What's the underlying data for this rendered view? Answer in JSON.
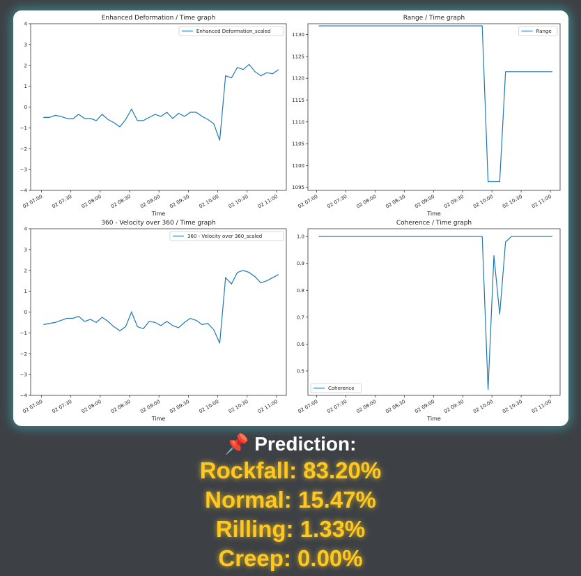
{
  "chart_data": [
    {
      "type": "line",
      "title": "Enhanced Deformation / Time graph",
      "xlabel": "Time",
      "x": [
        "02 07:02",
        "02 07:08",
        "02 07:14",
        "02 07:20",
        "02 07:26",
        "02 07:32",
        "02 07:38",
        "02 07:44",
        "02 07:50",
        "02 07:56",
        "02 08:02",
        "02 08:08",
        "02 08:14",
        "02 08:20",
        "02 08:26",
        "02 08:32",
        "02 08:38",
        "02 08:44",
        "02 08:50",
        "02 08:56",
        "02 09:02",
        "02 09:08",
        "02 09:14",
        "02 09:20",
        "02 09:26",
        "02 09:32",
        "02 09:38",
        "02 09:44",
        "02 09:50",
        "02 09:56",
        "02 10:02",
        "02 10:08",
        "02 10:14",
        "02 10:20",
        "02 10:26",
        "02 10:32",
        "02 10:38",
        "02 10:44",
        "02 10:50",
        "02 10:56",
        "02 11:02"
      ],
      "series": [
        {
          "name": "Enhanced Deformation_scaled",
          "color": "#1f77b4",
          "values": [
            -0.5,
            -0.5,
            -0.4,
            -0.45,
            -0.55,
            -0.57,
            -0.35,
            -0.55,
            -0.55,
            -0.65,
            -0.35,
            -0.6,
            -0.75,
            -0.95,
            -0.6,
            -0.1,
            -0.65,
            -0.65,
            -0.5,
            -0.35,
            -0.45,
            -0.25,
            -0.55,
            -0.3,
            -0.45,
            -0.25,
            -0.25,
            -0.45,
            -0.6,
            -0.8,
            -1.6,
            1.5,
            1.4,
            1.9,
            1.8,
            2.05,
            1.7,
            1.5,
            1.65,
            1.6,
            1.8
          ]
        }
      ],
      "xlim": [
        "02 06:49",
        "02 11:10"
      ],
      "xticks": [
        "02 07:00",
        "02 07:30",
        "02 08:00",
        "02 08:30",
        "02 09:00",
        "02 09:30",
        "02 10:00",
        "02 10:30",
        "02 11:00"
      ],
      "ylim": [
        -4,
        4
      ],
      "yticks": [
        {
          "value": -4,
          "label": "−4"
        },
        {
          "value": -3,
          "label": "−3"
        },
        {
          "value": -2,
          "label": "−2"
        },
        {
          "value": -1,
          "label": "−1"
        },
        0,
        1,
        2,
        3,
        4
      ],
      "legend": "upper right"
    },
    {
      "type": "line",
      "title": "Range / Time graph",
      "xlabel": "Time",
      "x": [
        "02 07:02",
        "02 07:08",
        "02 07:14",
        "02 07:20",
        "02 07:26",
        "02 07:32",
        "02 07:38",
        "02 07:44",
        "02 07:50",
        "02 07:56",
        "02 08:02",
        "02 08:08",
        "02 08:14",
        "02 08:20",
        "02 08:26",
        "02 08:32",
        "02 08:38",
        "02 08:44",
        "02 08:50",
        "02 08:56",
        "02 09:02",
        "02 09:08",
        "02 09:14",
        "02 09:20",
        "02 09:26",
        "02 09:32",
        "02 09:38",
        "02 09:44",
        "02 09:50",
        "02 09:56",
        "02 10:02",
        "02 10:08",
        "02 10:14",
        "02 10:20",
        "02 10:26",
        "02 10:32",
        "02 10:38",
        "02 10:44",
        "02 10:50",
        "02 10:56",
        "02 11:02"
      ],
      "series": [
        {
          "name": "Range",
          "color": "#1f77b4",
          "values": [
            1132,
            1132,
            1132,
            1132,
            1132,
            1132,
            1132,
            1132,
            1132,
            1132,
            1132,
            1132,
            1132,
            1132,
            1132,
            1132,
            1132,
            1132,
            1132,
            1132,
            1132,
            1132,
            1132,
            1132,
            1132,
            1132,
            1132,
            1132,
            1132,
            1096.3,
            1096.3,
            1096.3,
            1121.5,
            1121.5,
            1121.5,
            1121.5,
            1121.5,
            1121.5,
            1121.5,
            1121.5,
            1121.5
          ]
        }
      ],
      "xlim": [
        "02 06:51",
        "02 11:10"
      ],
      "xticks": [
        "02 07:00",
        "02 07:30",
        "02 08:00",
        "02 08:30",
        "02 09:00",
        "02 09:30",
        "02 10:00",
        "02 10:30",
        "02 11:00"
      ],
      "ylim": [
        1094.3,
        1132.5
      ],
      "yticks": [
        1095,
        1100,
        1105,
        1110,
        1115,
        1120,
        1125,
        1130
      ],
      "legend": "upper right"
    },
    {
      "type": "line",
      "title": "360 - Velocity over 360 / Time graph",
      "xlabel": "Time",
      "x": [
        "02 07:02",
        "02 07:08",
        "02 07:14",
        "02 07:20",
        "02 07:26",
        "02 07:32",
        "02 07:38",
        "02 07:44",
        "02 07:50",
        "02 07:56",
        "02 08:02",
        "02 08:08",
        "02 08:14",
        "02 08:20",
        "02 08:26",
        "02 08:32",
        "02 08:38",
        "02 08:44",
        "02 08:50",
        "02 08:56",
        "02 09:02",
        "02 09:08",
        "02 09:14",
        "02 09:20",
        "02 09:26",
        "02 09:32",
        "02 09:38",
        "02 09:44",
        "02 09:50",
        "02 09:56",
        "02 10:02",
        "02 10:08",
        "02 10:14",
        "02 10:20",
        "02 10:26",
        "02 10:32",
        "02 10:38",
        "02 10:44",
        "02 10:50",
        "02 10:56",
        "02 11:02"
      ],
      "series": [
        {
          "name": "360 - Velocity over 360_scaled",
          "color": "#1f77b4",
          "values": [
            -0.6,
            -0.55,
            -0.5,
            -0.4,
            -0.3,
            -0.3,
            -0.2,
            -0.45,
            -0.35,
            -0.5,
            -0.25,
            -0.45,
            -0.7,
            -0.9,
            -0.7,
            0,
            -0.7,
            -0.8,
            -0.45,
            -0.5,
            -0.65,
            -0.45,
            -0.65,
            -0.75,
            -0.5,
            -0.3,
            -0.4,
            -0.6,
            -0.55,
            -0.85,
            -1.5,
            1.65,
            1.35,
            1.9,
            2.0,
            1.9,
            1.7,
            1.4,
            1.5,
            1.65,
            1.8
          ]
        }
      ],
      "xlim": [
        "02 06:49",
        "02 11:10"
      ],
      "xticks": [
        "02 07:00",
        "02 07:30",
        "02 08:00",
        "02 08:30",
        "02 09:00",
        "02 09:30",
        "02 10:00",
        "02 10:30",
        "02 11:00"
      ],
      "ylim": [
        -4,
        4
      ],
      "yticks": [
        {
          "value": -4,
          "label": "−4"
        },
        {
          "value": -3,
          "label": "−3"
        },
        {
          "value": -2,
          "label": "−2"
        },
        {
          "value": -1,
          "label": "−1"
        },
        0,
        1,
        2,
        3,
        4
      ],
      "legend": "upper right"
    },
    {
      "type": "line",
      "title": "Coherence / Time graph",
      "xlabel": "Time",
      "x": [
        "02 07:02",
        "02 07:08",
        "02 07:14",
        "02 07:20",
        "02 07:26",
        "02 07:32",
        "02 07:38",
        "02 07:44",
        "02 07:50",
        "02 07:56",
        "02 08:02",
        "02 08:08",
        "02 08:14",
        "02 08:20",
        "02 08:26",
        "02 08:32",
        "02 08:38",
        "02 08:44",
        "02 08:50",
        "02 08:56",
        "02 09:02",
        "02 09:08",
        "02 09:14",
        "02 09:20",
        "02 09:26",
        "02 09:32",
        "02 09:38",
        "02 09:44",
        "02 09:50",
        "02 09:56",
        "02 10:02",
        "02 10:08",
        "02 10:14",
        "02 10:20",
        "02 10:26",
        "02 10:32",
        "02 10:38",
        "02 10:44",
        "02 10:50",
        "02 10:56",
        "02 11:02"
      ],
      "series": [
        {
          "name": "Coherence",
          "color": "#1f77b4",
          "values": [
            1,
            1,
            1,
            1,
            1,
            1,
            1,
            1,
            1,
            1,
            1,
            1,
            1,
            1,
            1,
            1,
            1,
            1,
            1,
            1,
            1,
            1,
            1,
            1,
            1,
            1,
            1,
            1,
            1,
            0.43,
            0.93,
            0.71,
            0.98,
            1,
            1,
            1,
            1,
            1,
            1,
            1,
            1
          ]
        }
      ],
      "xlim": [
        "02 06:51",
        "02 11:10"
      ],
      "xticks": [
        "02 07:00",
        "02 07:30",
        "02 08:00",
        "02 08:30",
        "02 09:00",
        "02 09:30",
        "02 10:00",
        "02 10:30",
        "02 11:00"
      ],
      "ylim": [
        0.409,
        1.029
      ],
      "yticks": [
        0.5,
        0.6,
        0.7,
        0.8,
        0.9,
        {
          "value": 1,
          "label": "1.0"
        }
      ],
      "legend": "lower left"
    }
  ],
  "prediction": {
    "title": "📌 Prediction:",
    "lines": [
      "Rockfall: 83.20%",
      "Normal: 15.47%",
      "Rilling: 1.33%",
      "Creep: 0.00%"
    ]
  }
}
